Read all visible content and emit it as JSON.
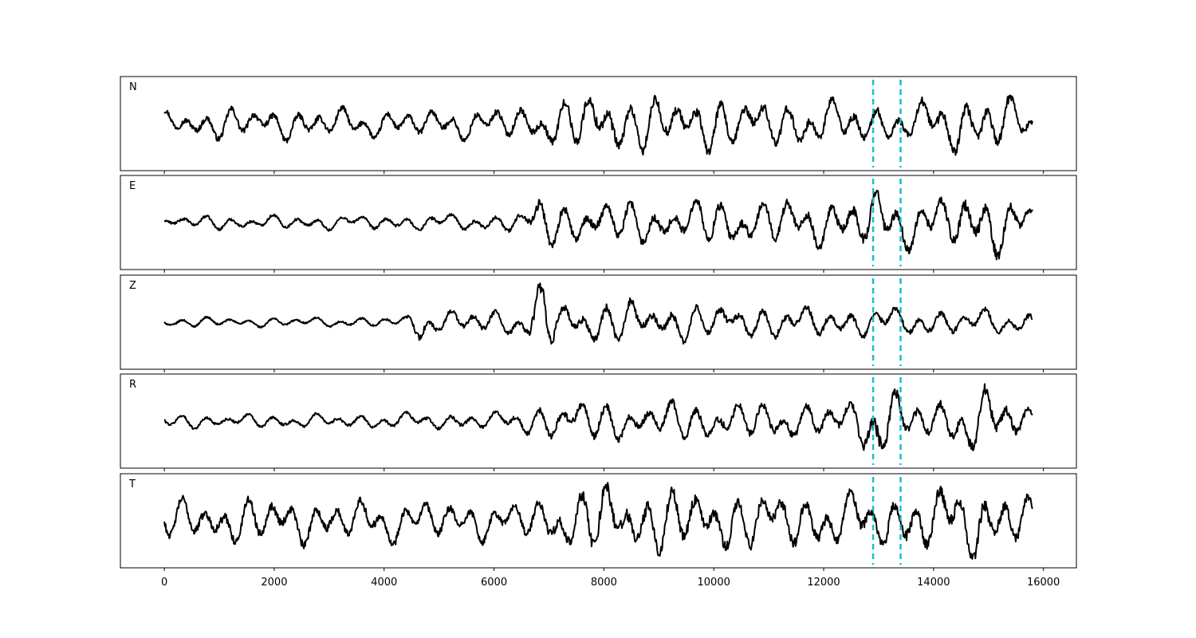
{
  "chart_data": {
    "type": "line",
    "x_range": [
      -800,
      15800
    ],
    "xlim": [
      -800,
      16600
    ],
    "x_ticks": [
      0,
      2000,
      4000,
      6000,
      8000,
      10000,
      12000,
      14000,
      16000
    ],
    "x_tick_labels": [
      "0",
      "2000",
      "4000",
      "6000",
      "8000",
      "10000",
      "12000",
      "14000",
      "16000"
    ],
    "grid": false,
    "legend": "none",
    "colors": {
      "trace": "#000000",
      "marker": "#17becf"
    },
    "vertical_markers": [
      12900,
      13400
    ],
    "series": [
      {
        "name": "N",
        "amplitude_envelope": [
          [
            0,
            0.28
          ],
          [
            1300,
            0.34
          ],
          [
            4500,
            0.3
          ],
          [
            6700,
            0.36
          ],
          [
            7950,
            0.72
          ],
          [
            8500,
            0.55
          ],
          [
            9600,
            0.6
          ],
          [
            11000,
            0.5
          ],
          [
            12500,
            0.45
          ],
          [
            13600,
            0.4
          ],
          [
            14900,
            0.72
          ],
          [
            15800,
            0.4
          ]
        ]
      },
      {
        "name": "E",
        "amplitude_envelope": [
          [
            0,
            0.14
          ],
          [
            3000,
            0.15
          ],
          [
            6000,
            0.18
          ],
          [
            6600,
            0.26
          ],
          [
            6800,
            0.6
          ],
          [
            7300,
            0.45
          ],
          [
            8500,
            0.45
          ],
          [
            10000,
            0.5
          ],
          [
            12500,
            0.5
          ],
          [
            13000,
            0.72
          ],
          [
            13600,
            0.5
          ],
          [
            14200,
            0.55
          ],
          [
            14900,
            0.75
          ],
          [
            15600,
            0.5
          ],
          [
            15800,
            0.4
          ]
        ]
      },
      {
        "name": "Z",
        "amplitude_envelope": [
          [
            0,
            0.1
          ],
          [
            3000,
            0.1
          ],
          [
            4400,
            0.12
          ],
          [
            4650,
            0.38
          ],
          [
            5000,
            0.25
          ],
          [
            6500,
            0.3
          ],
          [
            6900,
            0.92
          ],
          [
            7200,
            0.4
          ],
          [
            8400,
            0.48
          ],
          [
            9500,
            0.38
          ],
          [
            12000,
            0.32
          ],
          [
            15800,
            0.25
          ]
        ]
      },
      {
        "name": "R",
        "amplitude_envelope": [
          [
            0,
            0.14
          ],
          [
            3000,
            0.15
          ],
          [
            6000,
            0.18
          ],
          [
            6600,
            0.3
          ],
          [
            7300,
            0.45
          ],
          [
            8500,
            0.4
          ],
          [
            10000,
            0.4
          ],
          [
            12500,
            0.4
          ],
          [
            13000,
            0.88
          ],
          [
            13600,
            0.45
          ],
          [
            14200,
            0.45
          ],
          [
            14900,
            0.72
          ],
          [
            15800,
            0.3
          ]
        ]
      },
      {
        "name": "T",
        "amplitude_envelope": [
          [
            0,
            0.4
          ],
          [
            1300,
            0.5
          ],
          [
            4500,
            0.45
          ],
          [
            6500,
            0.38
          ],
          [
            7950,
            0.78
          ],
          [
            9600,
            0.65
          ],
          [
            11000,
            0.6
          ],
          [
            13000,
            0.58
          ],
          [
            14900,
            0.82
          ],
          [
            15800,
            0.45
          ]
        ]
      }
    ]
  }
}
